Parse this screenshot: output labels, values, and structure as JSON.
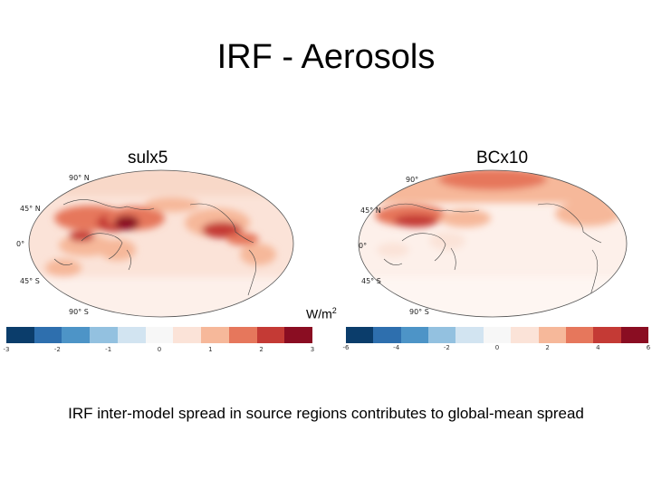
{
  "title": "IRF - Aerosols",
  "caption": "IRF inter-model spread in source regions contributes to global-mean spread",
  "units": {
    "base": "W/m",
    "exp": "2"
  },
  "palette": [
    "#0b3d6b",
    "#2e6fae",
    "#4d94c7",
    "#93c1e0",
    "#d2e4f1",
    "#f7f7f7",
    "#fbe3d8",
    "#f6b89a",
    "#e6775c",
    "#c43a35",
    "#8a0d22"
  ],
  "maps": [
    {
      "label": "sulx5",
      "lat_labels": {
        "n90": "90° N",
        "n45": "45° N",
        "eq": "0°",
        "s45": "45° S",
        "s90": "90° S"
      },
      "ticks": [
        "-3",
        "-2",
        "-1",
        "0",
        "1",
        "2",
        "3"
      ]
    },
    {
      "label": "BCx10",
      "lat_labels": {
        "n90": "90°",
        "n45": "45° N",
        "eq": "0°",
        "s45": "45° S",
        "s90": "90° S"
      },
      "ticks": [
        "-6",
        "-4",
        "-2",
        "0",
        "2",
        "4",
        "6"
      ]
    }
  ]
}
